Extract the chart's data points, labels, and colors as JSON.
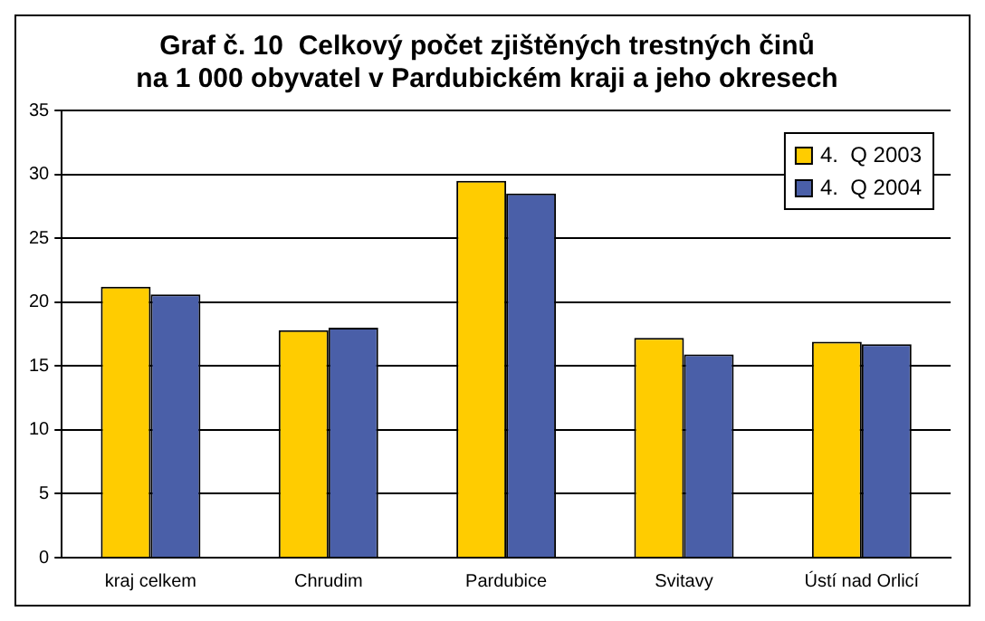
{
  "chart_data": {
    "type": "bar",
    "title": "Graf č. 10  Celkový počet zjištěných trestných činů\nna 1 000 obyvatel v Pardubickém kraji a jeho okresech",
    "categories": [
      "kraj celkem",
      "Chrudim",
      "Pardubice",
      "Svitavy",
      "Ústí nad Orlicí"
    ],
    "series": [
      {
        "name": "4.  Q 2003",
        "color": "#ffcc00",
        "values": [
          21.2,
          17.8,
          29.5,
          17.2,
          16.9
        ]
      },
      {
        "name": "4.  Q 2004",
        "color": "#4a5fa8",
        "values": [
          20.6,
          18.0,
          28.5,
          15.9,
          16.7
        ]
      }
    ],
    "ylim": [
      0,
      35
    ],
    "yticks": [
      0,
      5,
      10,
      15,
      20,
      25,
      30,
      35
    ],
    "grid": "y",
    "legend": "top right"
  }
}
